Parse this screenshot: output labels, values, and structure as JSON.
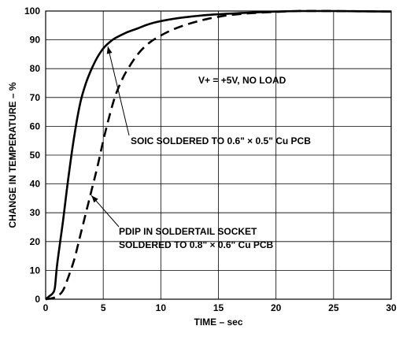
{
  "chart_data": {
    "type": "line",
    "title": "",
    "xlabel": "TIME – sec",
    "ylabel": "CHANGE IN TEMPERATURE – %",
    "xlim": [
      0,
      30
    ],
    "ylim": [
      0,
      100
    ],
    "xticks": [
      0,
      5,
      10,
      15,
      20,
      25,
      30
    ],
    "yticks": [
      0,
      10,
      20,
      30,
      40,
      50,
      60,
      70,
      80,
      90,
      100
    ],
    "grid": true,
    "series": [
      {
        "name": "SOIC SOLDERED TO 0.6\" × 0.5\" Cu PCB",
        "style": "solid",
        "x": [
          0,
          0.3,
          0.6,
          0.8,
          1.0,
          1.5,
          2.0,
          2.5,
          3.0,
          3.5,
          4.0,
          4.5,
          5.0,
          5.5,
          6.0,
          7.0,
          8.0,
          9.0,
          10.0,
          12.0,
          14.0,
          16.0,
          18.0,
          20.0,
          22.0,
          25.0,
          30.0
        ],
        "y": [
          0,
          1,
          2,
          4,
          12,
          27,
          43,
          57,
          68,
          75,
          80,
          84,
          87,
          89,
          90.5,
          92.5,
          94,
          95.5,
          96.5,
          97.8,
          98.6,
          99.1,
          99.5,
          99.8,
          100,
          100,
          99.8
        ]
      },
      {
        "name": "PDIP IN SOLDERTAIL SOCKET SOLDERED TO 0.8\" × 0.6\" Cu PCB",
        "style": "dashed",
        "x": [
          0,
          0.5,
          1.0,
          1.5,
          2.0,
          2.5,
          3.0,
          3.5,
          4.0,
          4.5,
          5.0,
          5.5,
          6.0,
          6.5,
          7.0,
          8.0,
          9.0,
          10.0,
          11.0,
          12.0,
          13.0,
          14.0,
          15.0,
          16.0,
          18.0,
          20.0,
          22.0,
          25.0,
          30.0
        ],
        "y": [
          0,
          0.3,
          1,
          3,
          8,
          14,
          22,
          30,
          38,
          46,
          55,
          63,
          70,
          75,
          79,
          85,
          89,
          91.5,
          93.5,
          95,
          96.2,
          97.2,
          98,
          98.6,
          99.3,
          99.7,
          100,
          100,
          99.8
        ]
      }
    ],
    "annotations": [
      {
        "id": "cond",
        "lines": [
          "V+ = +5V, NO LOAD"
        ]
      },
      {
        "id": "soic",
        "lines": [
          "SOIC SOLDERED TO 0.6\" × 0.5\" Cu PCB"
        ],
        "points_to_series": 0
      },
      {
        "id": "pdip",
        "lines": [
          "PDIP IN SOLDERTAIL SOCKET",
          "SOLDERED TO 0.8\" × 0.6\" Cu PCB"
        ],
        "points_to_series": 1
      }
    ]
  }
}
